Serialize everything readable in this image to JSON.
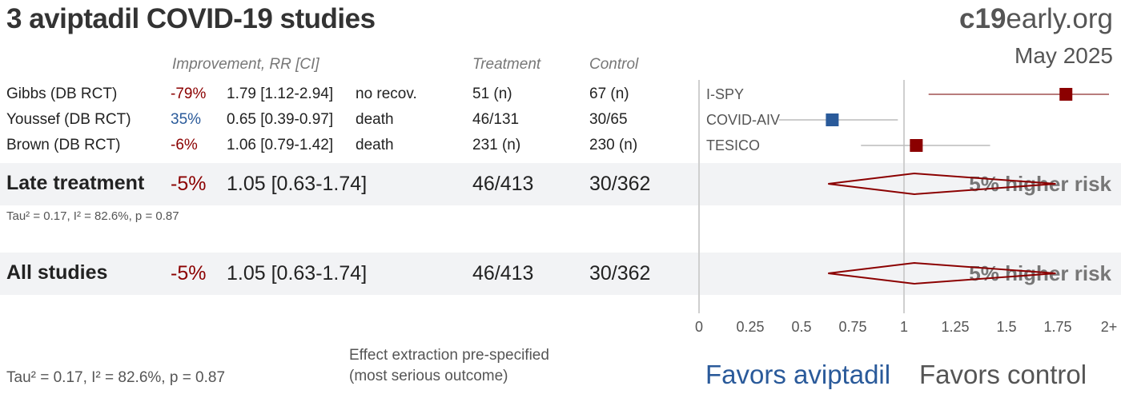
{
  "title": "3 aviptadil COVID-19 studies",
  "brand": {
    "bold": "c19",
    "rest": "early.org"
  },
  "date": "May 2025",
  "headers": {
    "improvement": "Improvement, RR [CI]",
    "treatment": "Treatment",
    "control": "Control"
  },
  "studies": [
    {
      "name": "Gibbs (DB RCT)",
      "improvement": "-79%",
      "rr_ci": "1.79 [1.12-2.94]",
      "outcome": "no recov.",
      "treatment": "51 (n)",
      "control": "67 (n)",
      "trial": "I-SPY"
    },
    {
      "name": "Youssef (DB RCT)",
      "improvement": "35%",
      "rr_ci": "0.65 [0.39-0.97]",
      "outcome": "death",
      "treatment": "46/131",
      "control": "30/65",
      "trial": "COVID-AIV"
    },
    {
      "name": "Brown (DB RCT)",
      "improvement": "-6%",
      "rr_ci": "1.06 [0.79-1.42]",
      "outcome": "death",
      "treatment": "231 (n)",
      "control": "230 (n)",
      "trial": "TESICO"
    }
  ],
  "summaries": [
    {
      "name": "Late treatment",
      "improvement": "-5%",
      "rr_ci": "1.05 [0.63-1.74]",
      "treatment": "46/413",
      "control": "30/362",
      "risk_text": "5% higher risk",
      "stats": "Tau² = 0.17, I² = 82.6%, p = 0.87"
    },
    {
      "name": "All studies",
      "improvement": "-5%",
      "rr_ci": "1.05 [0.63-1.74]",
      "treatment": "46/413",
      "control": "30/362",
      "risk_text": "5% higher risk"
    }
  ],
  "footer": {
    "stats": "Tau² = 0.17, I² = 82.6%, p = 0.87",
    "note_line1": "Effect extraction pre-specified",
    "note_line2": "(most serious outcome)",
    "favors_left": "Favors aviptadil",
    "favors_right": "Favors control"
  },
  "colors": {
    "harm": "#8b0000",
    "benefit": "#2a5a9a",
    "band": "#f2f3f5"
  },
  "chart_data": {
    "type": "forest",
    "x_ticks": [
      "0",
      "0.25",
      "0.5",
      "0.75",
      "1",
      "1.25",
      "1.5",
      "1.75",
      "2+"
    ],
    "xlim": [
      0,
      2
    ],
    "reference_line": 1,
    "studies": [
      {
        "trial": "I-SPY",
        "rr": 1.79,
        "lo": 1.12,
        "hi": 2.94,
        "direction": "harm"
      },
      {
        "trial": "COVID-AIV",
        "rr": 0.65,
        "lo": 0.39,
        "hi": 0.97,
        "direction": "benefit"
      },
      {
        "trial": "TESICO",
        "rr": 1.06,
        "lo": 0.79,
        "hi": 1.42,
        "direction": "harm"
      }
    ],
    "pooled": [
      {
        "name": "Late treatment",
        "rr": 1.05,
        "lo": 0.63,
        "hi": 1.74
      },
      {
        "name": "All studies",
        "rr": 1.05,
        "lo": 0.63,
        "hi": 1.74
      }
    ]
  }
}
